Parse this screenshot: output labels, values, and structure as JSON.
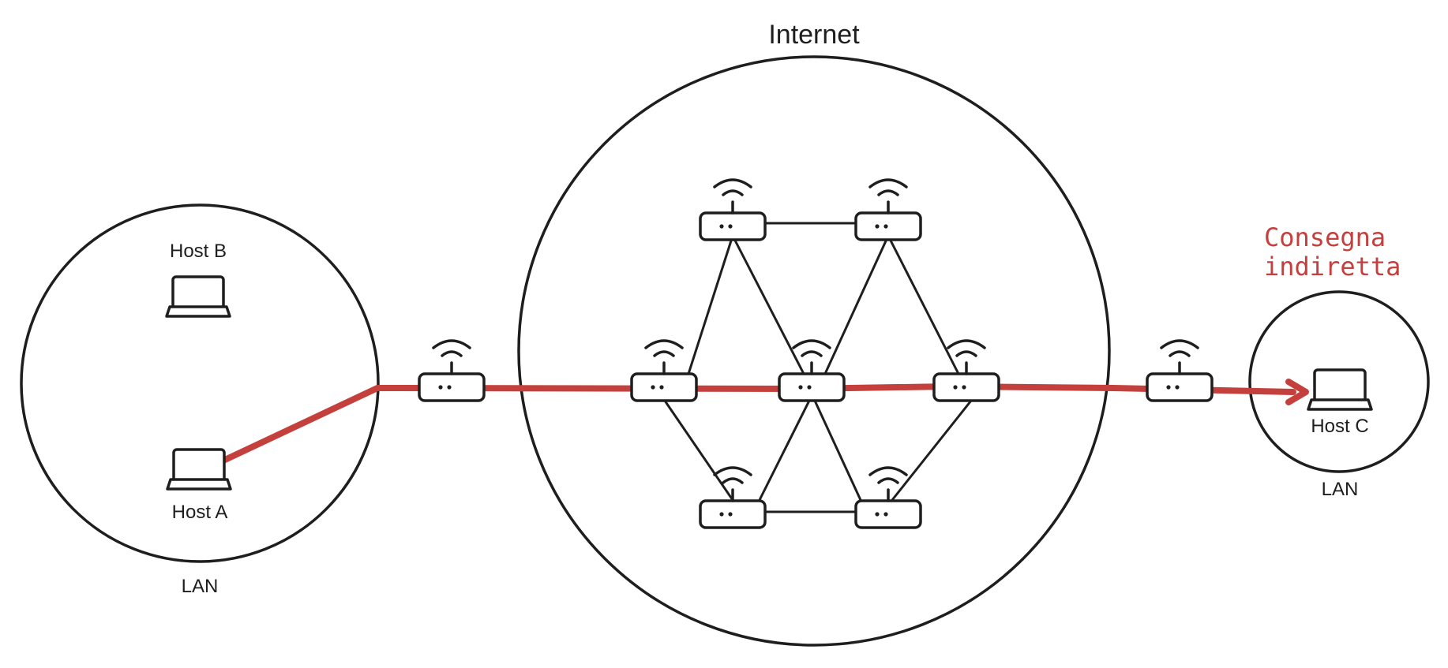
{
  "internet": {
    "label": "Internet"
  },
  "lan_left": {
    "label": "LAN",
    "host_a": "Host A",
    "host_b": "Host B"
  },
  "lan_right": {
    "label": "LAN",
    "host_c": "Host C"
  },
  "annotation": {
    "line1": "Consegna",
    "line2": "indiretta",
    "color": "#c4403d"
  },
  "icons": {
    "router": "wifi-router-icon",
    "host": "laptop-icon"
  }
}
